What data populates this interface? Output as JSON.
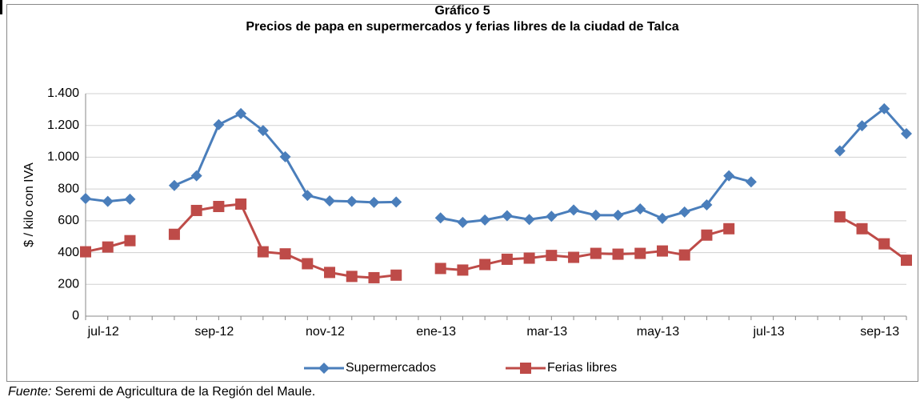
{
  "chart_data": {
    "type": "line",
    "title": "Gráfico 5",
    "subtitle": "Precios de papa en supermercados y ferias libres de la ciudad de Talca",
    "y_label": "$ / kilo con IVA",
    "categories": [
      "jul-12",
      null,
      null,
      null,
      null,
      "sep-12",
      null,
      null,
      null,
      null,
      "nov-12",
      null,
      null,
      null,
      null,
      "ene-13",
      null,
      null,
      null,
      null,
      "mar-13",
      null,
      null,
      null,
      null,
      "may-13",
      null,
      null,
      null,
      null,
      "jul-13",
      null,
      null,
      null,
      null,
      "sep-13",
      null,
      null
    ],
    "series": [
      {
        "name": "Supermercados",
        "color": "#4a7ebb",
        "marker": "diamond",
        "values": [
          740,
          722,
          736,
          null,
          822,
          883,
          1205,
          1275,
          1168,
          1003,
          760,
          725,
          722,
          716,
          718,
          null,
          618,
          590,
          605,
          632,
          608,
          628,
          668,
          635,
          635,
          675,
          615,
          655,
          700,
          883,
          845,
          null,
          null,
          null,
          1040,
          1198,
          1305,
          1148
        ]
      },
      {
        "name": "Ferias libres",
        "color": "#be4b48",
        "marker": "square",
        "values": [
          405,
          435,
          475,
          null,
          515,
          665,
          690,
          705,
          405,
          392,
          330,
          275,
          250,
          242,
          258,
          null,
          300,
          290,
          325,
          358,
          365,
          382,
          370,
          395,
          390,
          395,
          410,
          385,
          510,
          550,
          null,
          null,
          null,
          null,
          625,
          550,
          455,
          352
        ]
      }
    ],
    "ylim": [
      0,
      1400
    ],
    "yticks": [
      0,
      200,
      400,
      600,
      800,
      {
        "value": 1000,
        "label": "1.000"
      },
      {
        "value": 1200,
        "label": "1.200"
      },
      {
        "value": 1400,
        "label": "1.400"
      }
    ],
    "grid": true,
    "legend": "bottom"
  },
  "source_label": "Fuente:",
  "source_text": " Seremi de Agricultura de la Región del Maule."
}
